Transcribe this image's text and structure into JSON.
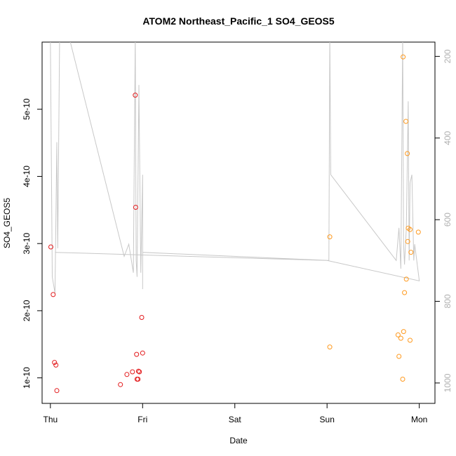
{
  "chart_data": {
    "type": "scatter",
    "title": "ATOM2 Northeast_Pacific_1 SO4_GEOS5",
    "xlabel": "Date",
    "ylabel": "SO4_GEOS5",
    "x_tick_labels": [
      "Thu",
      "Fri",
      "Sat",
      "Sun",
      "Mon"
    ],
    "x_range": [
      -0.09,
      4.17
    ],
    "y_range": [
      6.2e-11,
      6e-10
    ],
    "y_ticks": [
      1e-10,
      2e-10,
      3e-10,
      4e-10,
      5e-10
    ],
    "y_tick_labels": [
      "1e-10",
      "2e-10",
      "3e-10",
      "4e-10",
      "5e-10"
    ],
    "right_axis": {
      "label_color": "#b0b0b0",
      "range_top_to_bottom": [
        165,
        1050
      ],
      "ticks": [
        200,
        400,
        600,
        800,
        1000
      ],
      "tick_labels": [
        "200",
        "400",
        "600",
        "800",
        "1000"
      ]
    },
    "series": [
      {
        "color": "#e31a1c",
        "marker": "open-circle",
        "points": [
          [
            0.005,
            2.95e-10
          ],
          [
            0.03,
            2.24e-10
          ],
          [
            0.045,
            1.23e-10
          ],
          [
            0.06,
            1.19e-10
          ],
          [
            0.07,
            8.1e-11
          ],
          [
            0.76,
            9e-11
          ],
          [
            0.83,
            1.05e-10
          ],
          [
            0.89,
            1.09e-10
          ],
          [
            0.92,
            5.21e-10
          ],
          [
            0.925,
            3.54e-10
          ],
          [
            0.935,
            1.35e-10
          ],
          [
            0.94,
            9.8e-11
          ],
          [
            0.95,
            9.8e-11
          ],
          [
            0.955,
            1.1e-10
          ],
          [
            0.965,
            1.09e-10
          ],
          [
            0.99,
            1.9e-10
          ],
          [
            1.0,
            1.37e-10
          ]
        ]
      },
      {
        "color": "#ff9a1f",
        "marker": "open-circle",
        "points": [
          [
            3.03,
            3.1e-10
          ],
          [
            3.03,
            1.46e-10
          ],
          [
            3.77,
            1.64e-10
          ],
          [
            3.78,
            1.32e-10
          ],
          [
            3.8,
            1.59e-10
          ],
          [
            3.82,
            9.8e-11
          ],
          [
            3.825,
            5.78e-10
          ],
          [
            3.83,
            1.69e-10
          ],
          [
            3.84,
            2.27e-10
          ],
          [
            3.855,
            4.82e-10
          ],
          [
            3.86,
            2.47e-10
          ],
          [
            3.87,
            4.34e-10
          ],
          [
            3.875,
            3.03e-10
          ],
          [
            3.88,
            3.23e-10
          ],
          [
            3.9,
            3.21e-10
          ],
          [
            3.9,
            1.56e-10
          ],
          [
            3.91,
            2.87e-10
          ],
          [
            3.99,
            3.17e-10
          ]
        ]
      }
    ],
    "pressure_line": {
      "color": "#c8c8c8",
      "points": [
        [
          0.0,
          150
        ],
        [
          0.02,
          740
        ],
        [
          0.05,
          780
        ],
        [
          0.07,
          410
        ],
        [
          0.08,
          670
        ],
        [
          0.1,
          150
        ],
        [
          0.2,
          150
        ],
        [
          0.8,
          690
        ],
        [
          0.85,
          660
        ],
        [
          0.9,
          730
        ],
        [
          0.92,
          150
        ],
        [
          0.93,
          700
        ],
        [
          0.94,
          740
        ],
        [
          0.96,
          270
        ],
        [
          0.98,
          730
        ],
        [
          1.0,
          490
        ],
        [
          1.0,
          770
        ],
        [
          1.0,
          680
        ],
        [
          3.02,
          700
        ],
        [
          3.03,
          150
        ],
        [
          3.04,
          490
        ],
        [
          3.75,
          700
        ],
        [
          3.78,
          620
        ],
        [
          3.8,
          720
        ],
        [
          3.82,
          150
        ],
        [
          3.83,
          660
        ],
        [
          3.84,
          710
        ],
        [
          3.86,
          620
        ],
        [
          3.88,
          310
        ],
        [
          3.89,
          700
        ],
        [
          3.9,
          510
        ],
        [
          3.92,
          490
        ],
        [
          3.94,
          700
        ],
        [
          3.95,
          660
        ],
        [
          4.0,
          750
        ],
        [
          3.0,
          700
        ],
        [
          0.05,
          680
        ]
      ]
    }
  }
}
